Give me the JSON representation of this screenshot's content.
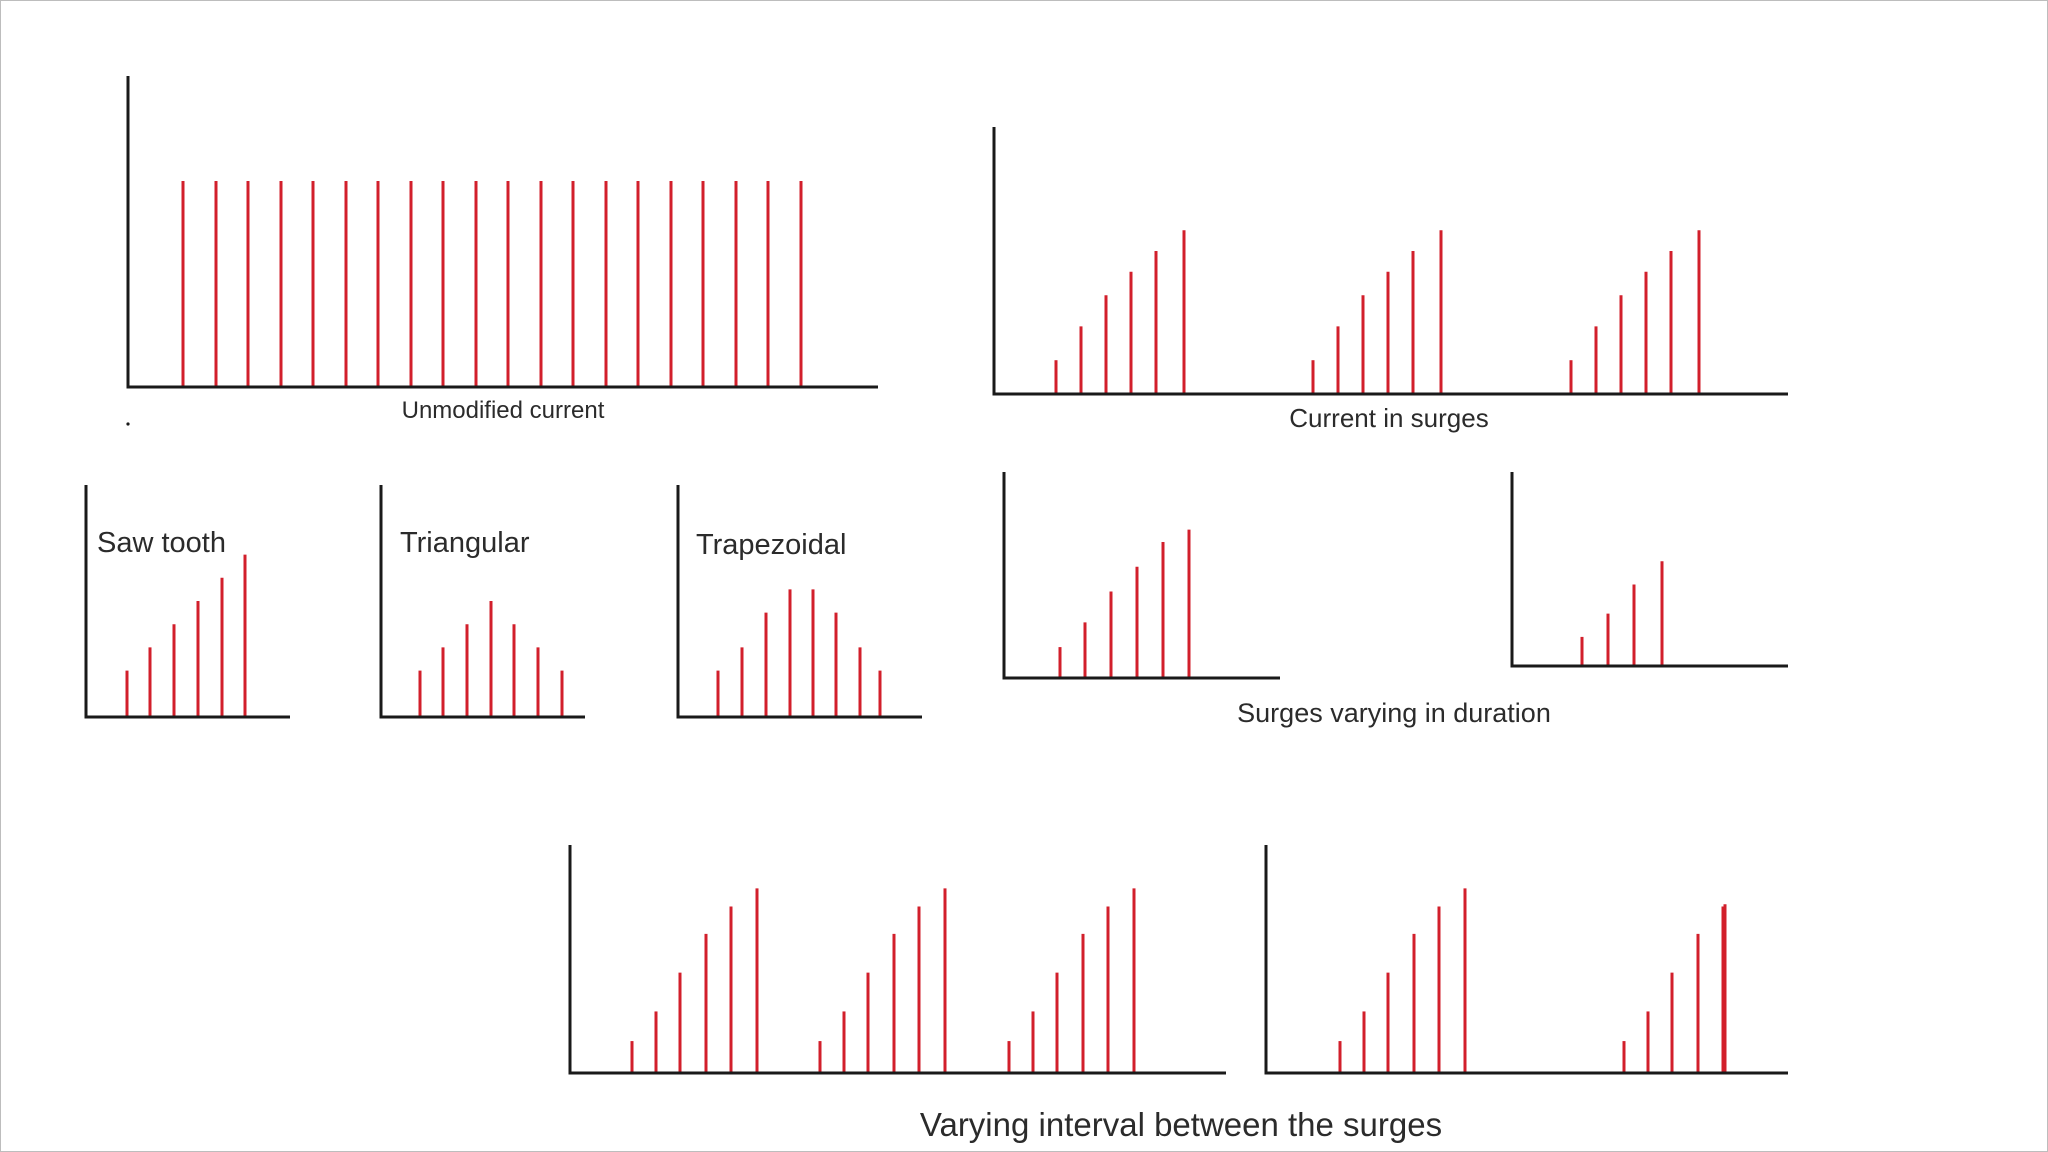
{
  "colors": {
    "pulse": "#d21f2b",
    "axis": "#1a1a1a",
    "text": "#2b2b2b",
    "background": "#ffffff"
  },
  "captions": {
    "unmodified": "Unmodified current",
    "surges": "Current in surges",
    "duration": "Surges varying in duration",
    "interval": "Varying interval between the surges"
  },
  "titles": {
    "sawtooth": "Saw tooth",
    "triangular": "Triangular",
    "trapezoidal": "Trapezoidal"
  },
  "chart_data": [
    {
      "id": "unmodified",
      "type": "bar",
      "values": [
        1,
        1,
        1,
        1,
        1,
        1,
        1,
        1,
        1,
        1,
        1,
        1,
        1,
        1,
        1,
        1,
        1,
        1,
        1,
        1
      ]
    },
    {
      "id": "surges",
      "type": "bar",
      "groups": [
        [
          0.13,
          0.26,
          0.38,
          0.47,
          0.55,
          0.63
        ],
        [
          0.13,
          0.26,
          0.38,
          0.47,
          0.55,
          0.63
        ],
        [
          0.13,
          0.26,
          0.38,
          0.47,
          0.55,
          0.63
        ]
      ]
    },
    {
      "id": "sawtooth",
      "type": "bar",
      "values": [
        0.2,
        0.3,
        0.4,
        0.5,
        0.6,
        0.7
      ]
    },
    {
      "id": "triangular",
      "type": "bar",
      "values": [
        0.2,
        0.3,
        0.4,
        0.5,
        0.4,
        0.3,
        0.2
      ]
    },
    {
      "id": "trapezoidal",
      "type": "bar",
      "values": [
        0.2,
        0.3,
        0.45,
        0.55,
        0.55,
        0.45,
        0.3,
        0.2
      ]
    },
    {
      "id": "duration-long",
      "type": "bar",
      "values": [
        0.15,
        0.27,
        0.42,
        0.54,
        0.66,
        0.72
      ]
    },
    {
      "id": "duration-short",
      "type": "bar",
      "values": [
        0.15,
        0.27,
        0.42,
        0.54
      ]
    },
    {
      "id": "interval-short",
      "type": "bar",
      "groups": [
        [
          0.14,
          0.27,
          0.44,
          0.61,
          0.73,
          0.81
        ],
        [
          0.14,
          0.27,
          0.44,
          0.61,
          0.73,
          0.81
        ],
        [
          0.14,
          0.27,
          0.44,
          0.61,
          0.73,
          0.81
        ]
      ]
    },
    {
      "id": "interval-long",
      "type": "bar",
      "groups": [
        [
          0.14,
          0.27,
          0.44,
          0.61,
          0.73,
          0.81
        ],
        [
          0.14,
          0.27,
          0.44,
          0.61,
          0.73,
          0.74
        ]
      ]
    }
  ]
}
